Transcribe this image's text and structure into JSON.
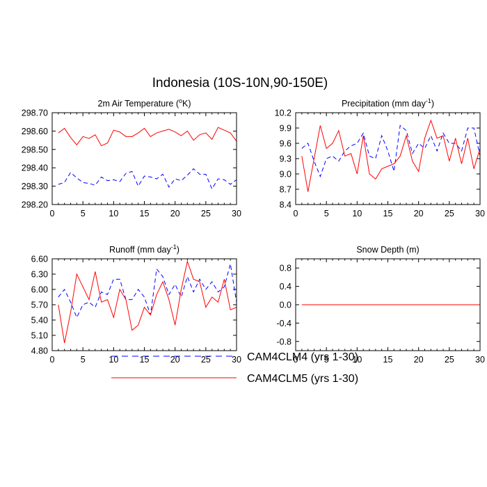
{
  "figure": {
    "title": "Indonesia (10S-10N,90-150E)"
  },
  "legend": {
    "entries": [
      {
        "name": "CAM4CLM4",
        "label": "CAM4CLM4 (yrs 1-30)",
        "color": "#0000ff",
        "style": "dashed"
      },
      {
        "name": "CAM4CLM5",
        "label": "CAM4CLM5 (yrs 1-30)",
        "color": "#ff0000",
        "style": "solid"
      }
    ]
  },
  "chart_data": [
    {
      "type": "line",
      "title": "2m Air Temperature (°K)",
      "title_parts": [
        "2m Air Temperature (",
        "o",
        "K)"
      ],
      "x": [
        1,
        2,
        3,
        4,
        5,
        6,
        7,
        8,
        9,
        10,
        11,
        12,
        13,
        14,
        15,
        16,
        17,
        18,
        19,
        20,
        21,
        22,
        23,
        24,
        25,
        26,
        27,
        28,
        29,
        30
      ],
      "xlim": [
        0,
        30
      ],
      "xticks": [
        "0",
        "5",
        "10",
        "15",
        "20",
        "25",
        "30"
      ],
      "ylim": [
        298.2,
        298.7
      ],
      "yticks": [
        "298.20",
        "298.30",
        "298.40",
        "298.50",
        "298.60",
        "298.70"
      ],
      "series": [
        {
          "name": "CAM4CLM4",
          "values": [
            298.31,
            298.32,
            298.375,
            298.345,
            298.32,
            298.315,
            298.305,
            298.35,
            298.33,
            298.335,
            298.325,
            298.37,
            298.38,
            298.3,
            298.355,
            298.35,
            298.34,
            298.365,
            298.295,
            298.34,
            298.33,
            298.36,
            298.395,
            298.365,
            298.365,
            298.285,
            298.34,
            298.335,
            298.31,
            298.335
          ]
        },
        {
          "name": "CAM4CLM5",
          "values": [
            298.59,
            298.615,
            298.565,
            298.525,
            298.57,
            298.56,
            298.58,
            298.52,
            298.535,
            298.605,
            298.595,
            298.57,
            298.57,
            298.59,
            298.615,
            298.57,
            298.59,
            298.6,
            298.61,
            298.595,
            298.575,
            298.6,
            298.55,
            298.58,
            298.59,
            298.555,
            298.62,
            298.605,
            298.59,
            298.545
          ]
        }
      ]
    },
    {
      "type": "line",
      "title": "Precipitation (mm day-1)",
      "title_parts": [
        "Precipitation (mm day",
        "-1",
        ")"
      ],
      "x": [
        1,
        2,
        3,
        4,
        5,
        6,
        7,
        8,
        9,
        10,
        11,
        12,
        13,
        14,
        15,
        16,
        17,
        18,
        19,
        20,
        21,
        22,
        23,
        24,
        25,
        26,
        27,
        28,
        29,
        30
      ],
      "xlim": [
        0,
        30
      ],
      "xticks": [
        "0",
        "5",
        "10",
        "15",
        "20",
        "25",
        "30"
      ],
      "ylim": [
        8.4,
        10.2
      ],
      "yticks": [
        "8.4",
        "8.7",
        "9.0",
        "9.3",
        "9.6",
        "9.9",
        "10.2"
      ],
      "series": [
        {
          "name": "CAM4CLM4",
          "values": [
            9.5,
            9.6,
            9.25,
            8.95,
            9.3,
            9.35,
            9.25,
            9.45,
            9.55,
            9.6,
            9.8,
            9.35,
            9.3,
            9.75,
            9.45,
            9.05,
            9.95,
            9.85,
            9.4,
            9.6,
            9.5,
            9.75,
            9.45,
            9.8,
            9.6,
            9.6,
            9.45,
            9.9,
            9.9,
            9.35
          ]
        },
        {
          "name": "CAM4CLM5",
          "values": [
            9.35,
            8.65,
            9.3,
            9.95,
            9.5,
            9.6,
            9.85,
            9.35,
            9.4,
            9.0,
            9.75,
            9.0,
            8.9,
            9.1,
            9.15,
            9.2,
            9.35,
            9.75,
            9.25,
            9.05,
            9.7,
            10.05,
            9.7,
            9.75,
            9.25,
            9.7,
            9.2,
            9.7,
            9.1,
            9.5
          ]
        }
      ]
    },
    {
      "type": "line",
      "title": "Runoff (mm day-1)",
      "title_parts": [
        "Runoff (mm day",
        "-1",
        ")"
      ],
      "x": [
        1,
        2,
        3,
        4,
        5,
        6,
        7,
        8,
        9,
        10,
        11,
        12,
        13,
        14,
        15,
        16,
        17,
        18,
        19,
        20,
        21,
        22,
        23,
        24,
        25,
        26,
        27,
        28,
        29,
        30
      ],
      "xlim": [
        0,
        30
      ],
      "xticks": [
        "0",
        "5",
        "10",
        "15",
        "20",
        "25",
        "30"
      ],
      "ylim": [
        4.8,
        6.6
      ],
      "yticks": [
        "4.80",
        "5.10",
        "5.40",
        "5.70",
        "6.00",
        "6.30",
        "6.60"
      ],
      "series": [
        {
          "name": "CAM4CLM4",
          "values": [
            5.85,
            6.0,
            5.75,
            5.45,
            5.7,
            5.75,
            5.65,
            5.95,
            5.9,
            6.2,
            6.2,
            5.8,
            5.8,
            6.0,
            5.85,
            5.5,
            6.4,
            6.25,
            5.9,
            6.1,
            5.85,
            6.25,
            5.95,
            6.2,
            6.0,
            6.15,
            5.95,
            6.05,
            6.5,
            5.75
          ]
        },
        {
          "name": "CAM4CLM5",
          "values": [
            5.7,
            4.95,
            5.55,
            6.3,
            6.05,
            5.8,
            6.35,
            5.75,
            5.8,
            5.45,
            6.0,
            5.8,
            5.2,
            5.3,
            5.65,
            5.5,
            5.9,
            6.15,
            5.8,
            5.3,
            6.0,
            6.55,
            6.2,
            6.15,
            5.65,
            5.85,
            5.75,
            6.2,
            5.6,
            5.65
          ]
        }
      ]
    },
    {
      "type": "line",
      "title": "Snow Depth (m)",
      "title_parts": [
        "Snow Depth (m)",
        "",
        ""
      ],
      "x": [
        1,
        2,
        3,
        4,
        5,
        6,
        7,
        8,
        9,
        10,
        11,
        12,
        13,
        14,
        15,
        16,
        17,
        18,
        19,
        20,
        21,
        22,
        23,
        24,
        25,
        26,
        27,
        28,
        29,
        30
      ],
      "xlim": [
        0,
        30
      ],
      "xticks": [
        "0",
        "5",
        "10",
        "15",
        "20",
        "25",
        "30"
      ],
      "ylim": [
        -1.0,
        1.0
      ],
      "yticks": [
        "-0.8",
        "-0.4",
        "0.0",
        "0.4",
        "0.8"
      ],
      "ytick_values": [
        -0.8,
        -0.4,
        0.0,
        0.4,
        0.8
      ],
      "series": [
        {
          "name": "CAM4CLM4",
          "values": [
            0,
            0,
            0,
            0,
            0,
            0,
            0,
            0,
            0,
            0,
            0,
            0,
            0,
            0,
            0,
            0,
            0,
            0,
            0,
            0,
            0,
            0,
            0,
            0,
            0,
            0,
            0,
            0,
            0,
            0
          ]
        },
        {
          "name": "CAM4CLM5",
          "values": [
            0,
            0,
            0,
            0,
            0,
            0,
            0,
            0,
            0,
            0,
            0,
            0,
            0,
            0,
            0,
            0,
            0,
            0,
            0,
            0,
            0,
            0,
            0,
            0,
            0,
            0,
            0,
            0,
            0,
            0
          ]
        }
      ]
    }
  ]
}
